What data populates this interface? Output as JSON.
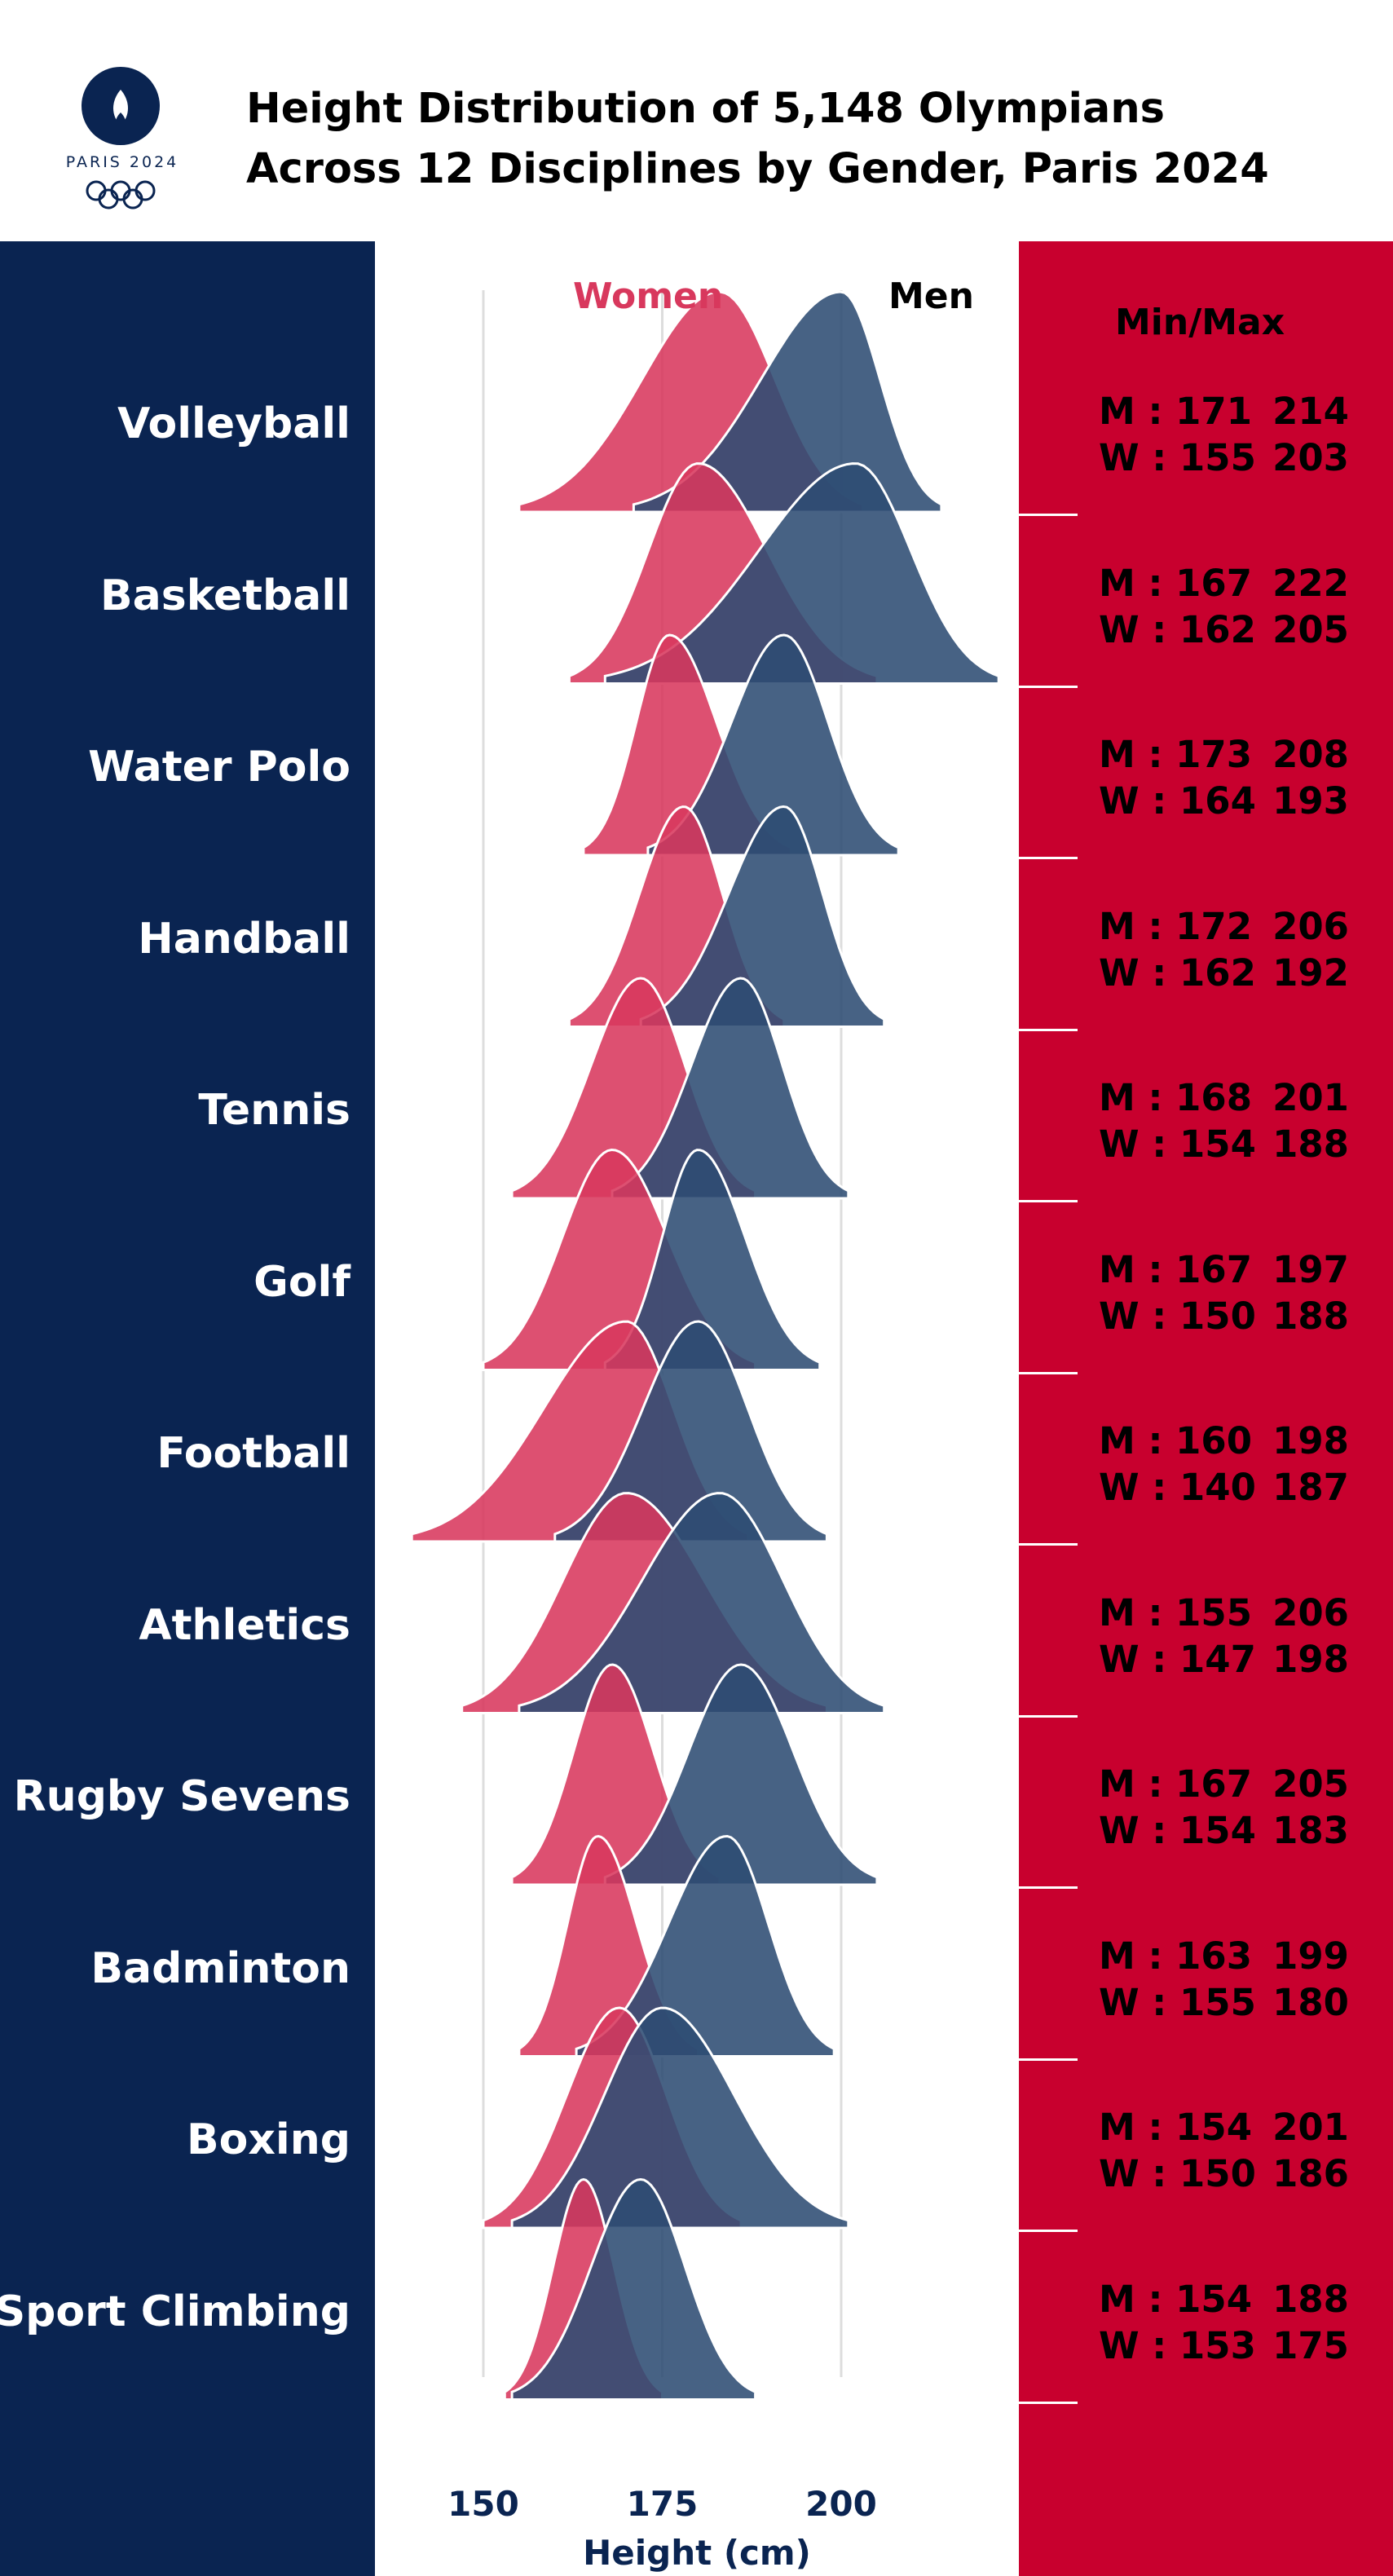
{
  "header": {
    "title_line1": "Height Distribution of 5,148 Olympians",
    "title_line2": "Across 12 Disciplines by Gender, Paris 2024",
    "logo_text": "PARIS 2024"
  },
  "colors": {
    "navy": "#0a2451",
    "red": "#c8002e",
    "women_fill": "#d8385d",
    "men_fill": "#2d4c73",
    "women_label": "#d8385d",
    "men_label": "#000000"
  },
  "legend": {
    "women": "Women",
    "men": "Men"
  },
  "minmax_title": "Min/Max",
  "disciplines": [
    {
      "name": "Volleyball",
      "men": {
        "label": "M : 171",
        "max": "214"
      },
      "women": {
        "label": "W : 155",
        "max": "203"
      }
    },
    {
      "name": "Basketball",
      "men": {
        "label": "M : 167",
        "max": "222"
      },
      "women": {
        "label": "W : 162",
        "max": "205"
      }
    },
    {
      "name": "Water Polo",
      "men": {
        "label": "M : 173",
        "max": "208"
      },
      "women": {
        "label": "W : 164",
        "max": "193"
      }
    },
    {
      "name": "Handball",
      "men": {
        "label": "M : 172",
        "max": "206"
      },
      "women": {
        "label": "W : 162",
        "max": "192"
      }
    },
    {
      "name": "Tennis",
      "men": {
        "label": "M : 168",
        "max": "201"
      },
      "women": {
        "label": "W : 154",
        "max": "188"
      }
    },
    {
      "name": "Golf",
      "men": {
        "label": "M : 167",
        "max": "197"
      },
      "women": {
        "label": "W : 150",
        "max": "188"
      }
    },
    {
      "name": "Football",
      "men": {
        "label": "M : 160",
        "max": "198"
      },
      "women": {
        "label": "W : 140",
        "max": "187"
      }
    },
    {
      "name": "Athletics",
      "men": {
        "label": "M : 155",
        "max": "206"
      },
      "women": {
        "label": "W : 147",
        "max": "198"
      }
    },
    {
      "name": "Rugby Sevens",
      "men": {
        "label": "M : 167",
        "max": "205"
      },
      "women": {
        "label": "W : 154",
        "max": "183"
      }
    },
    {
      "name": "Badminton",
      "men": {
        "label": "M : 163",
        "max": "199"
      },
      "women": {
        "label": "W : 155",
        "max": "180"
      }
    },
    {
      "name": "Boxing",
      "men": {
        "label": "M : 154",
        "max": "201"
      },
      "women": {
        "label": "W : 150",
        "max": "186"
      }
    },
    {
      "name": "Sport Climbing",
      "men": {
        "label": "M : 154",
        "max": "188"
      },
      "women": {
        "label": "W : 153",
        "max": "175"
      }
    }
  ],
  "chart_data": {
    "type": "area",
    "subtype": "ridgeline",
    "xlabel": "Height (cm)",
    "x_ticks": [
      150,
      175,
      200
    ],
    "xlim": [
      150,
      200
    ],
    "grid": true,
    "series": [
      {
        "name": "Women",
        "color": "#d8385d",
        "peaks": [
          {
            "discipline": "Volleyball",
            "mode": 183,
            "min": 155,
            "max": 203
          },
          {
            "discipline": "Basketball",
            "mode": 180,
            "min": 162,
            "max": 205
          },
          {
            "discipline": "Water Polo",
            "mode": 176,
            "min": 164,
            "max": 193
          },
          {
            "discipline": "Handball",
            "mode": 178,
            "min": 162,
            "max": 192
          },
          {
            "discipline": "Tennis",
            "mode": 172,
            "min": 154,
            "max": 188
          },
          {
            "discipline": "Golf",
            "mode": 168,
            "min": 150,
            "max": 188
          },
          {
            "discipline": "Football",
            "mode": 170,
            "min": 140,
            "max": 187
          },
          {
            "discipline": "Athletics",
            "mode": 170,
            "min": 147,
            "max": 198
          },
          {
            "discipline": "Rugby Sevens",
            "mode": 168,
            "min": 154,
            "max": 183
          },
          {
            "discipline": "Badminton",
            "mode": 166,
            "min": 155,
            "max": 180
          },
          {
            "discipline": "Boxing",
            "mode": 169,
            "min": 150,
            "max": 186
          },
          {
            "discipline": "Sport Climbing",
            "mode": 164,
            "min": 153,
            "max": 175
          }
        ]
      },
      {
        "name": "Men",
        "color": "#2d4c73",
        "peaks": [
          {
            "discipline": "Volleyball",
            "mode": 200,
            "min": 171,
            "max": 214
          },
          {
            "discipline": "Basketball",
            "mode": 202,
            "min": 167,
            "max": 222
          },
          {
            "discipline": "Water Polo",
            "mode": 192,
            "min": 173,
            "max": 208
          },
          {
            "discipline": "Handball",
            "mode": 192,
            "min": 172,
            "max": 206
          },
          {
            "discipline": "Tennis",
            "mode": 186,
            "min": 168,
            "max": 201
          },
          {
            "discipline": "Golf",
            "mode": 180,
            "min": 167,
            "max": 197
          },
          {
            "discipline": "Football",
            "mode": 180,
            "min": 160,
            "max": 198
          },
          {
            "discipline": "Athletics",
            "mode": 183,
            "min": 155,
            "max": 206
          },
          {
            "discipline": "Rugby Sevens",
            "mode": 186,
            "min": 167,
            "max": 205
          },
          {
            "discipline": "Badminton",
            "mode": 184,
            "min": 163,
            "max": 199
          },
          {
            "discipline": "Boxing",
            "mode": 175,
            "min": 154,
            "max": 201
          },
          {
            "discipline": "Sport Climbing",
            "mode": 172,
            "min": 154,
            "max": 188
          }
        ]
      }
    ]
  }
}
